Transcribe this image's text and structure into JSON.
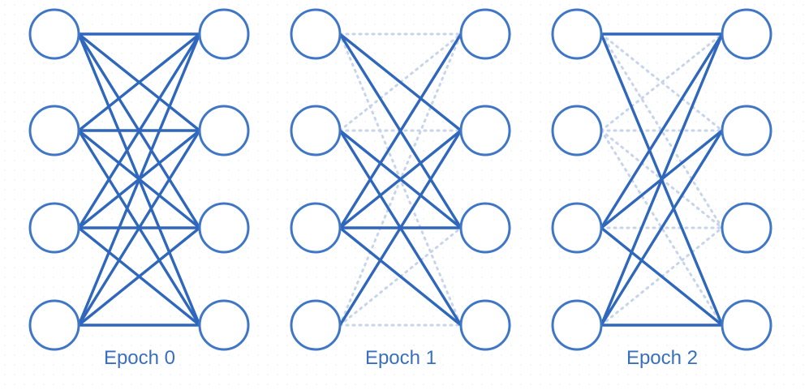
{
  "colors": {
    "line": "#2f67bd",
    "dropped_line": "#c7d4e9",
    "node_stroke": "#3f77c6",
    "node_fill": "#ffffff",
    "label": "#3a6fbf"
  },
  "diagram": {
    "description_type": "dropout-epochs",
    "nodes_per_layer": 4,
    "panels": [
      {
        "label": "Epoch 0",
        "active": [
          [
            0,
            0
          ],
          [
            0,
            1
          ],
          [
            0,
            2
          ],
          [
            0,
            3
          ],
          [
            1,
            0
          ],
          [
            1,
            1
          ],
          [
            1,
            2
          ],
          [
            1,
            3
          ],
          [
            2,
            0
          ],
          [
            2,
            1
          ],
          [
            2,
            2
          ],
          [
            2,
            3
          ],
          [
            3,
            0
          ],
          [
            3,
            1
          ],
          [
            3,
            2
          ],
          [
            3,
            3
          ]
        ]
      },
      {
        "label": "Epoch 1",
        "active": [
          [
            0,
            1
          ],
          [
            0,
            2
          ],
          [
            1,
            2
          ],
          [
            1,
            3
          ],
          [
            2,
            0
          ],
          [
            2,
            1
          ],
          [
            2,
            2
          ],
          [
            2,
            3
          ],
          [
            3,
            1
          ]
        ]
      },
      {
        "label": "Epoch 2",
        "active": [
          [
            0,
            0
          ],
          [
            0,
            3
          ],
          [
            2,
            0
          ],
          [
            2,
            1
          ],
          [
            2,
            3
          ],
          [
            3,
            0
          ],
          [
            3,
            1
          ],
          [
            3,
            3
          ]
        ]
      }
    ]
  }
}
